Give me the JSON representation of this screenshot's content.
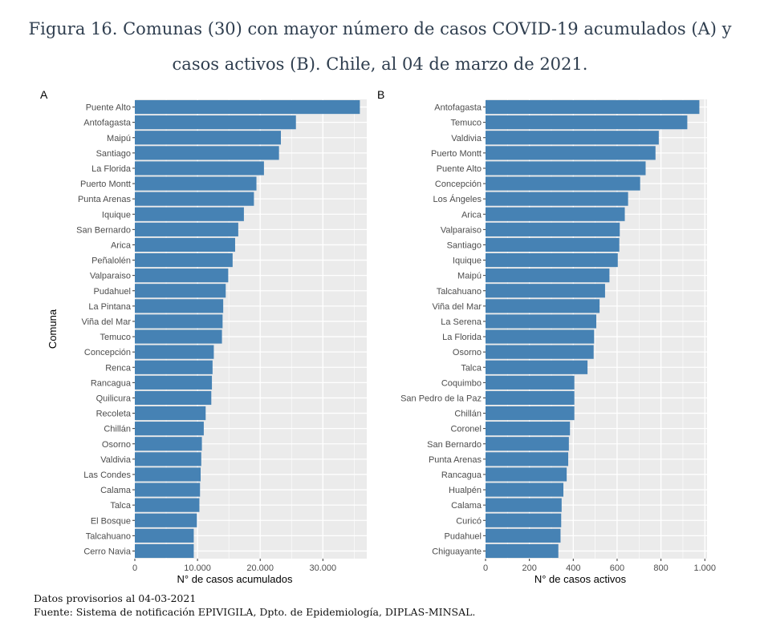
{
  "figure": {
    "title_line1": "Figura 16. Comunas (30) con mayor número de casos COVID-19 acumulados (A) y",
    "title_line2": "casos activos (B). Chile, al 04 de marzo de 2021.",
    "footnote_line1": "Datos provisorios al 04-03-2021",
    "footnote_line2": "Fuente: Sistema de notificación EPIVIGILA, Dpto. de Epidemiología, DIPLAS-MINSAL."
  },
  "colors": {
    "bar": "#4682b4",
    "panel": "#ebebeb",
    "grid": "#ffffff"
  },
  "chart_data": [
    {
      "type": "bar",
      "orientation": "horizontal",
      "panel_label": "A",
      "xlabel": "N° de casos acumulados",
      "ylabel": "Comuna",
      "xlim": [
        0,
        37000
      ],
      "xticks": [
        0,
        10000,
        20000,
        30000
      ],
      "xtick_labels": [
        "0",
        "10.000",
        "20.000",
        "30.000"
      ],
      "grid": true,
      "categories": [
        "Puente Alto",
        "Antofagasta",
        "Maipú",
        "Santiago",
        "La Florida",
        "Puerto Montt",
        "Punta Arenas",
        "Iquique",
        "San Bernardo",
        "Arica",
        "Peñalolén",
        "Valparaiso",
        "Pudahuel",
        "La Pintana",
        "Viña del Mar",
        "Temuco",
        "Concepción",
        "Renca",
        "Rancagua",
        "Quilicura",
        "Recoleta",
        "Chillán",
        "Osorno",
        "Valdivia",
        "Las Condes",
        "Calama",
        "Talca",
        "El Bosque",
        "Talcahuano",
        "Cerro Navia"
      ],
      "values": [
        35900,
        25700,
        23300,
        23000,
        20600,
        19400,
        19000,
        17400,
        16500,
        16000,
        15600,
        14900,
        14500,
        14100,
        14000,
        13900,
        12600,
        12400,
        12300,
        12200,
        11300,
        11000,
        10700,
        10600,
        10500,
        10400,
        10300,
        9900,
        9400,
        9400
      ]
    },
    {
      "type": "bar",
      "orientation": "horizontal",
      "panel_label": "B",
      "xlabel": "N° de casos activos",
      "ylabel": "",
      "xlim": [
        0,
        1010
      ],
      "xticks": [
        0,
        200,
        400,
        600,
        800,
        1000
      ],
      "xtick_labels": [
        "0",
        "200",
        "400",
        "600",
        "800",
        "1.000"
      ],
      "grid": true,
      "categories": [
        "Antofagasta",
        "Temuco",
        "Valdivia",
        "Puerto Montt",
        "Puente Alto",
        "Concepción",
        "Los Ángeles",
        "Arica",
        "Valparaiso",
        "Santiago",
        "Iquique",
        "Maipú",
        "Talcahuano",
        "Viña del Mar",
        "La Serena",
        "La Florida",
        "Osorno",
        "Talca",
        "Coquimbo",
        "San Pedro de la Paz",
        "Chillán",
        "Coronel",
        "San Bernardo",
        "Punta Arenas",
        "Rancagua",
        "Hualpén",
        "Calama",
        "Curicó",
        "Pudahuel",
        "Chiguayante"
      ],
      "values": [
        975,
        920,
        790,
        775,
        730,
        705,
        650,
        635,
        612,
        610,
        603,
        565,
        545,
        520,
        505,
        495,
        493,
        465,
        405,
        405,
        405,
        385,
        380,
        377,
        370,
        355,
        347,
        345,
        342,
        332
      ]
    }
  ]
}
